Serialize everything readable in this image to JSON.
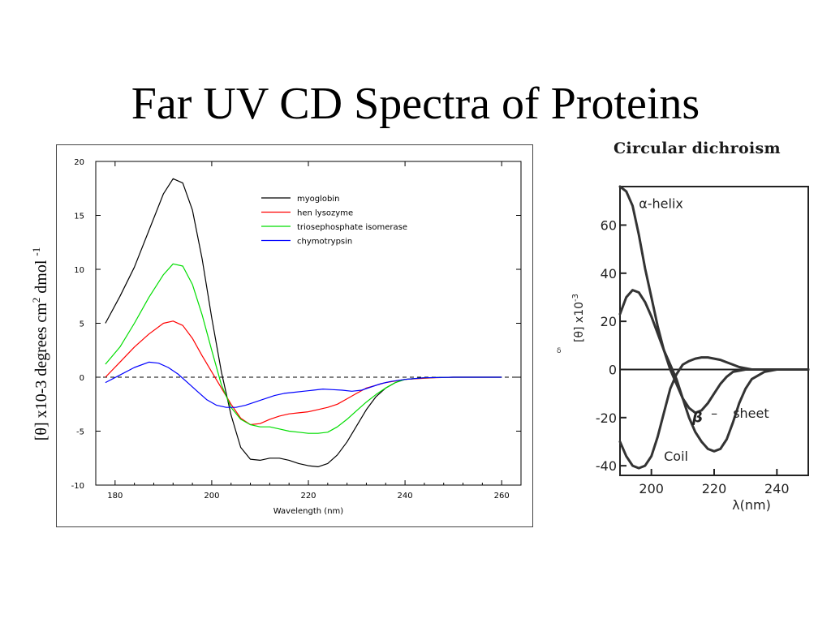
{
  "slide": {
    "title": "Far UV CD Spectra of Proteins",
    "ylabel_prefix": "[θ] x10-3 degrees cm",
    "ylabel_sup1": "2",
    "ylabel_mid": " dmol ",
    "ylabel_sup2": "-1"
  },
  "right_panel_title": "Circular dichroism",
  "stray_mark": "δ",
  "chart_data": [
    {
      "type": "line",
      "title": "",
      "xlabel": "Wavelength (nm)",
      "ylabel": "",
      "xlim": [
        176,
        264
      ],
      "ylim": [
        -10,
        20
      ],
      "xticks": [
        180,
        200,
        220,
        240,
        260
      ],
      "yticks": [
        -10,
        -5,
        0,
        5,
        10,
        15,
        20
      ],
      "legend_position": "top-right",
      "grid": false,
      "zero_line": "dashed",
      "series": [
        {
          "name": "myoglobin",
          "color": "#000000",
          "points": [
            [
              178,
              5
            ],
            [
              181,
              7.5
            ],
            [
              184,
              10.2
            ],
            [
              187,
              13.6
            ],
            [
              190,
              17
            ],
            [
              192,
              18.4
            ],
            [
              194,
              18
            ],
            [
              196,
              15.5
            ],
            [
              198,
              11
            ],
            [
              200,
              5.5
            ],
            [
              202,
              0.5
            ],
            [
              204,
              -3.5
            ],
            [
              206,
              -6.5
            ],
            [
              208,
              -7.6
            ],
            [
              210,
              -7.7
            ],
            [
              212,
              -7.5
            ],
            [
              214,
              -7.5
            ],
            [
              216,
              -7.7
            ],
            [
              218,
              -8
            ],
            [
              220,
              -8.2
            ],
            [
              222,
              -8.3
            ],
            [
              224,
              -8
            ],
            [
              226,
              -7.2
            ],
            [
              228,
              -6
            ],
            [
              230,
              -4.5
            ],
            [
              232,
              -3
            ],
            [
              234,
              -1.8
            ],
            [
              236,
              -1
            ],
            [
              238,
              -0.5
            ],
            [
              240,
              -0.2
            ],
            [
              244,
              -0.05
            ],
            [
              250,
              0
            ],
            [
              260,
              0
            ]
          ]
        },
        {
          "name": "hen lysozyme",
          "color": "#ff0000",
          "points": [
            [
              178,
              0
            ],
            [
              181,
              1.4
            ],
            [
              184,
              2.8
            ],
            [
              187,
              4
            ],
            [
              190,
              5
            ],
            [
              192,
              5.2
            ],
            [
              194,
              4.8
            ],
            [
              196,
              3.6
            ],
            [
              198,
              2
            ],
            [
              200,
              0.5
            ],
            [
              202,
              -1
            ],
            [
              204,
              -2.5
            ],
            [
              206,
              -3.8
            ],
            [
              208,
              -4.4
            ],
            [
              210,
              -4.3
            ],
            [
              212,
              -3.9
            ],
            [
              214,
              -3.6
            ],
            [
              216,
              -3.4
            ],
            [
              218,
              -3.3
            ],
            [
              220,
              -3.2
            ],
            [
              222,
              -3
            ],
            [
              224,
              -2.8
            ],
            [
              226,
              -2.5
            ],
            [
              228,
              -2
            ],
            [
              230,
              -1.5
            ],
            [
              232,
              -1
            ],
            [
              236,
              -0.5
            ],
            [
              240,
              -0.2
            ],
            [
              246,
              -0.05
            ],
            [
              250,
              0
            ],
            [
              260,
              0
            ]
          ]
        },
        {
          "name": "triosephosphate isomerase",
          "color": "#00dd00",
          "points": [
            [
              178,
              1.2
            ],
            [
              181,
              2.8
            ],
            [
              184,
              5
            ],
            [
              187,
              7.4
            ],
            [
              190,
              9.5
            ],
            [
              192,
              10.5
            ],
            [
              194,
              10.3
            ],
            [
              196,
              8.6
            ],
            [
              198,
              5.8
            ],
            [
              200,
              2.5
            ],
            [
              202,
              -0.7
            ],
            [
              204,
              -2.8
            ],
            [
              206,
              -3.9
            ],
            [
              208,
              -4.4
            ],
            [
              210,
              -4.6
            ],
            [
              212,
              -4.6
            ],
            [
              214,
              -4.8
            ],
            [
              216,
              -5
            ],
            [
              218,
              -5.1
            ],
            [
              220,
              -5.2
            ],
            [
              222,
              -5.2
            ],
            [
              224,
              -5.1
            ],
            [
              226,
              -4.6
            ],
            [
              228,
              -3.9
            ],
            [
              230,
              -3.1
            ],
            [
              232,
              -2.3
            ],
            [
              234,
              -1.6
            ],
            [
              236,
              -1
            ],
            [
              238,
              -0.5
            ],
            [
              240,
              -0.2
            ],
            [
              244,
              -0.05
            ],
            [
              250,
              0
            ],
            [
              260,
              0
            ]
          ]
        },
        {
          "name": "chymotrypsin",
          "color": "#0000ff",
          "points": [
            [
              178,
              -0.5
            ],
            [
              181,
              0.2
            ],
            [
              184,
              0.9
            ],
            [
              187,
              1.4
            ],
            [
              189,
              1.3
            ],
            [
              191,
              0.9
            ],
            [
              193,
              0.3
            ],
            [
              195,
              -0.5
            ],
            [
              197,
              -1.3
            ],
            [
              199,
              -2.1
            ],
            [
              201,
              -2.6
            ],
            [
              203,
              -2.8
            ],
            [
              205,
              -2.8
            ],
            [
              207,
              -2.6
            ],
            [
              209,
              -2.3
            ],
            [
              211,
              -2
            ],
            [
              213,
              -1.7
            ],
            [
              215,
              -1.5
            ],
            [
              217,
              -1.4
            ],
            [
              219,
              -1.3
            ],
            [
              221,
              -1.2
            ],
            [
              223,
              -1.1
            ],
            [
              225,
              -1.15
            ],
            [
              227,
              -1.2
            ],
            [
              229,
              -1.3
            ],
            [
              231,
              -1.2
            ],
            [
              233,
              -0.9
            ],
            [
              235,
              -0.6
            ],
            [
              237,
              -0.4
            ],
            [
              240,
              -0.2
            ],
            [
              244,
              -0.05
            ],
            [
              250,
              0
            ],
            [
              260,
              0
            ]
          ]
        }
      ]
    },
    {
      "type": "line",
      "title": "Circular dichroism",
      "xlabel": "λ(nm)",
      "ylabel": "[θ] x10",
      "ylabel_sup": "-3",
      "xlim": [
        190,
        250
      ],
      "ylim": [
        -44,
        76
      ],
      "xticks": [
        200,
        220,
        240
      ],
      "yticks": [
        -40,
        -20,
        0,
        20,
        40,
        60
      ],
      "grid": false,
      "zero_line": "solid",
      "series": [
        {
          "name": "α-helix",
          "color": "#333333",
          "points": [
            [
              190,
              76
            ],
            [
              192,
              74
            ],
            [
              194,
              68
            ],
            [
              196,
              56
            ],
            [
              198,
              42
            ],
            [
              200,
              30
            ],
            [
              202,
              18
            ],
            [
              204,
              8
            ],
            [
              206,
              0
            ],
            [
              208,
              -6
            ],
            [
              210,
              -12
            ],
            [
              212,
              -16
            ],
            [
              214,
              -18
            ],
            [
              216,
              -17
            ],
            [
              218,
              -14
            ],
            [
              220,
              -10
            ],
            [
              222,
              -6
            ],
            [
              224,
              -3
            ],
            [
              226,
              -1
            ],
            [
              230,
              0
            ],
            [
              240,
              0
            ],
            [
              250,
              0
            ]
          ]
        },
        {
          "name": "β - sheet",
          "color": "#333333",
          "points": [
            [
              190,
              23
            ],
            [
              192,
              30
            ],
            [
              194,
              33
            ],
            [
              196,
              32
            ],
            [
              198,
              28
            ],
            [
              200,
              22
            ],
            [
              202,
              15
            ],
            [
              204,
              8
            ],
            [
              206,
              2
            ],
            [
              208,
              -4
            ],
            [
              210,
              -12
            ],
            [
              212,
              -20
            ],
            [
              214,
              -26
            ],
            [
              216,
              -30
            ],
            [
              218,
              -33
            ],
            [
              220,
              -34
            ],
            [
              222,
              -33
            ],
            [
              224,
              -29
            ],
            [
              226,
              -22
            ],
            [
              228,
              -14
            ],
            [
              230,
              -8
            ],
            [
              232,
              -4
            ],
            [
              236,
              -1
            ],
            [
              240,
              0
            ],
            [
              250,
              0
            ]
          ]
        },
        {
          "name": "Coil",
          "color": "#333333",
          "points": [
            [
              190,
              -30
            ],
            [
              192,
              -36
            ],
            [
              194,
              -40
            ],
            [
              196,
              -41
            ],
            [
              198,
              -40
            ],
            [
              200,
              -36
            ],
            [
              202,
              -28
            ],
            [
              204,
              -18
            ],
            [
              206,
              -8
            ],
            [
              208,
              -2
            ],
            [
              210,
              2
            ],
            [
              212,
              3.5
            ],
            [
              214,
              4.5
            ],
            [
              216,
              5
            ],
            [
              218,
              5
            ],
            [
              220,
              4.5
            ],
            [
              222,
              4
            ],
            [
              224,
              3
            ],
            [
              226,
              2
            ],
            [
              228,
              1
            ],
            [
              232,
              0
            ],
            [
              240,
              0
            ],
            [
              250,
              0
            ]
          ]
        }
      ],
      "annotations": [
        {
          "text": "α-helix",
          "x": 196,
          "y": 67
        },
        {
          "text": "β",
          "x": 213,
          "y": -22
        },
        {
          "text": "–",
          "x": 219,
          "y": -20
        },
        {
          "text": "sheet",
          "x": 226,
          "y": -20
        },
        {
          "text": "Coil",
          "x": 204,
          "y": -38
        }
      ]
    }
  ]
}
